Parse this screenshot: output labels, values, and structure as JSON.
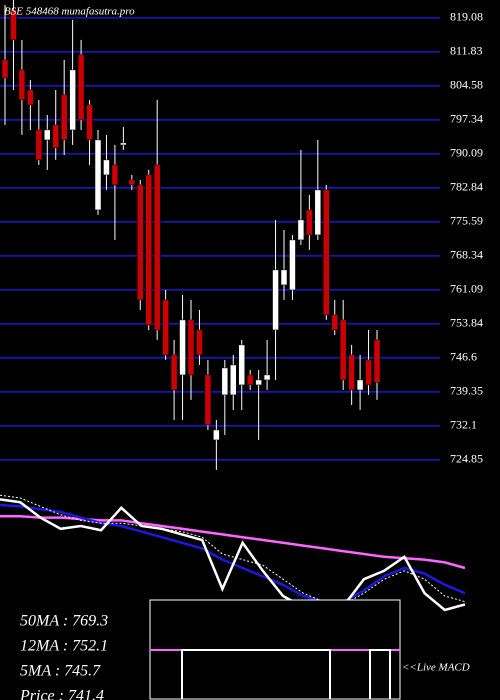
{
  "chart_data": [
    {
      "type": "candlestick",
      "title": "BSE 548468 munafasutra.pro",
      "up_color": "#ffffff",
      "down_color": "#cc0000",
      "grid_color": "#1a1acc",
      "grid": true,
      "ylim": [
        722.7,
        822.9
      ],
      "yticks": [
        819.08,
        811.83,
        804.58,
        797.34,
        790.09,
        782.84,
        775.59,
        768.34,
        761.09,
        753.84,
        746.6,
        739.35,
        732.1,
        724.85
      ],
      "open": [
        810.13,
        820.79,
        808.0,
        803.73,
        795.2,
        793.07,
        796.27,
        802.67,
        795.2,
        811.19,
        800.53,
        778.15,
        785.61,
        787.74,
        792.0,
        784.54,
        783.48,
        785.61,
        787.74,
        758.96,
        747.23,
        742.97,
        754.7,
        752.56,
        742.97,
        729.11,
        738.71,
        738.71,
        740.84,
        742.97,
        740.84,
        741.9,
        752.56,
        762.16,
        761.09,
        771.75,
        778.15,
        772.82,
        782.41,
        755.76,
        754.7,
        747.23,
        739.77,
        746.17,
        750.43
      ],
      "high": [
        821.85,
        822.92,
        814.39,
        805.86,
        801.6,
        798.4,
        803.73,
        810.13,
        818.66,
        814.39,
        801.6,
        795.2,
        794.14,
        792.0,
        795.84,
        785.61,
        784.54,
        786.68,
        801.6,
        761.09,
        750.43,
        760.03,
        758.96,
        756.83,
        746.17,
        733.38,
        746.17,
        747.23,
        750.43,
        744.04,
        744.04,
        750.43,
        776.02,
        773.88,
        772.82,
        790.94,
        781.35,
        793.07,
        783.48,
        758.96,
        758.96,
        749.37,
        747.23,
        752.56,
        752.56
      ],
      "low": [
        796.27,
        803.73,
        794.14,
        795.2,
        787.74,
        786.68,
        788.81,
        789.87,
        792.0,
        795.2,
        787.74,
        777.08,
        782.41,
        771.75,
        790.94,
        782.41,
        756.83,
        752.56,
        750.43,
        746.17,
        733.38,
        733.38,
        737.64,
        745.1,
        731.24,
        722.72,
        730.18,
        735.51,
        735.51,
        739.77,
        729.11,
        739.77,
        741.9,
        758.96,
        758.96,
        770.69,
        769.62,
        771.75,
        754.7,
        751.5,
        739.77,
        736.57,
        735.51,
        738.71,
        737.64
      ],
      "close": [
        806.29,
        814.39,
        801.6,
        800.53,
        788.81,
        795.2,
        791.37,
        793.07,
        808.0,
        797.34,
        793.07,
        793.07,
        788.81,
        783.48,
        792.43,
        783.48,
        758.96,
        753.63,
        752.56,
        747.23,
        739.77,
        754.7,
        742.97,
        747.23,
        732.31,
        731.24,
        744.46,
        745.1,
        749.37,
        740.84,
        741.9,
        742.97,
        765.36,
        765.36,
        771.75,
        776.02,
        772.82,
        782.41,
        755.76,
        752.56,
        741.9,
        739.77,
        741.9,
        740.84,
        741.4
      ],
      "stats": [
        "50MA : 769.3",
        "12MA : 752.1",
        "5MA : 745.7",
        "Price  : 741.4"
      ]
    },
    {
      "type": "line",
      "ylim": [
        0,
        100
      ],
      "label": "<<Live MACD",
      "series": [
        {
          "color": "#ff66ff",
          "values": [
            67,
            67,
            66,
            66,
            65,
            64,
            64,
            62,
            60,
            58,
            56,
            54,
            52,
            50,
            48,
            46,
            44,
            42,
            40,
            38,
            37,
            36,
            34,
            30
          ]
        },
        {
          "color": "#1a1add",
          "values": [
            75,
            74,
            72,
            70,
            66,
            62,
            60,
            56,
            52,
            48,
            44,
            36,
            30,
            24,
            18,
            10,
            6,
            6,
            14,
            24,
            30,
            26,
            18,
            12
          ]
        },
        {
          "color": "#ffffff",
          "dash": true,
          "values": [
            82,
            80,
            74,
            68,
            64,
            62,
            62,
            60,
            58,
            56,
            52,
            40,
            36,
            32,
            22,
            12,
            6,
            4,
            12,
            22,
            28,
            22,
            10,
            6
          ]
        },
        {
          "color": "#ffffff",
          "values": [
            79,
            77,
            66,
            58,
            60,
            57,
            73,
            60,
            58,
            54,
            50,
            15,
            48,
            28,
            10,
            2,
            4,
            3,
            22,
            28,
            38,
            12,
            0,
            4
          ]
        }
      ]
    }
  ]
}
